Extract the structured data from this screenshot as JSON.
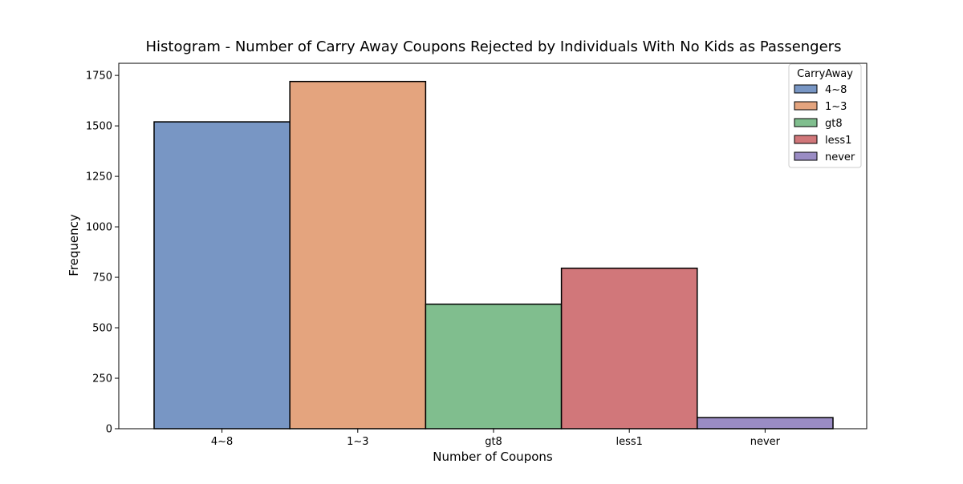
{
  "chart_data": {
    "type": "bar",
    "title": "Histogram - Number of Carry Away Coupons Rejected by Individuals With No Kids as Passengers",
    "xlabel": "Number of Coupons",
    "ylabel": "Frequency",
    "categories": [
      "4~8",
      "1~3",
      "gt8",
      "less1",
      "never"
    ],
    "values": [
      1520,
      1720,
      617,
      795,
      55
    ],
    "colors": [
      "#7896c4",
      "#e4a47e",
      "#80be8e",
      "#d1777a",
      "#9a8cc4"
    ],
    "ylim": [
      0,
      1810
    ],
    "yticks": [
      0,
      250,
      500,
      750,
      1000,
      1250,
      1500,
      1750
    ],
    "grid": false,
    "legend": {
      "title": "CarryAway",
      "placement": "top-right",
      "entries": [
        "4~8",
        "1~3",
        "gt8",
        "less1",
        "never"
      ]
    }
  }
}
